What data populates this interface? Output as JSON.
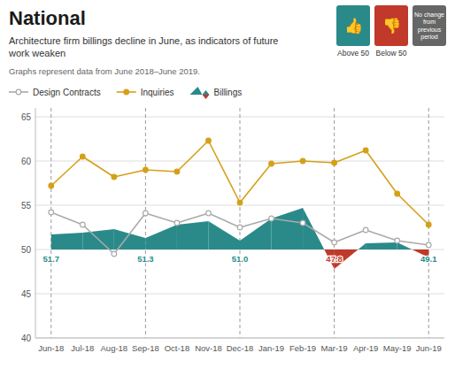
{
  "chart_data": {
    "type": "line",
    "title": "National",
    "subtitle": "Architecture firm billings decline in June, as indicators of future\nwork weaken",
    "note": "Graphs represent data from June 2018–June 2019.",
    "categories": [
      "Jun-18",
      "Jul-18",
      "Aug-18",
      "Sep-18",
      "Oct-18",
      "Nov-18",
      "Dec-18",
      "Jan-19",
      "Feb-19",
      "Mar-19",
      "Apr-19",
      "May-19",
      "Jun-19"
    ],
    "series": [
      {
        "name": "Design Contracts",
        "color": "#aaaaaa",
        "marker": "open-circle",
        "values": [
          54.2,
          52.8,
          49.5,
          54.1,
          53.0,
          54.1,
          52.5,
          53.5,
          53.0,
          50.8,
          52.2,
          51.0,
          50.5
        ]
      },
      {
        "name": "Inquiries",
        "color": "#d4a017",
        "marker": "circle",
        "values": [
          57.2,
          60.5,
          58.2,
          59.0,
          58.8,
          62.3,
          55.3,
          59.7,
          60.0,
          59.8,
          61.2,
          56.3,
          52.8
        ]
      },
      {
        "name": "Billings",
        "type": "area",
        "baseline": 50,
        "values": [
          51.7,
          51.9,
          52.3,
          51.3,
          52.8,
          53.2,
          51.0,
          53.5,
          54.7,
          47.8,
          50.7,
          50.8,
          49.1
        ],
        "colors": [
          "#2a8a8a",
          "#2a8a8a",
          "#2a8a8a",
          "#2a8a8a",
          "#2a8a8a",
          "#2a8a8a",
          "#2a8a8a",
          "#2a8a8a",
          "#2a8a8a",
          "#c0392b",
          "#2a8a8a",
          "#2a8a8a",
          "#c0392b"
        ],
        "data_labels": true,
        "value_labels": [
          "51.7",
          null,
          null,
          "51.3",
          null,
          null,
          "51.0",
          null,
          null,
          "47.8",
          null,
          null,
          "49.1"
        ],
        "label_colors": [
          "#2a8a8a",
          null,
          null,
          "#2a8a8a",
          null,
          null,
          "#2a8a8a",
          null,
          null,
          "#c0392b",
          null,
          null,
          "#2a8a8a"
        ]
      }
    ],
    "ylim": [
      40,
      66
    ],
    "yticks": [
      40,
      45,
      50,
      55,
      60,
      65
    ],
    "grid": true,
    "legend": "top",
    "badges": [
      {
        "label": "Above 50",
        "icon": "👍",
        "color": "#2a8a8a"
      },
      {
        "label": "Below 50",
        "icon": "👎",
        "color": "#c0392b"
      },
      {
        "text": "No change\nfrom\nprevious\nperiod",
        "color": "#666666"
      }
    ]
  }
}
